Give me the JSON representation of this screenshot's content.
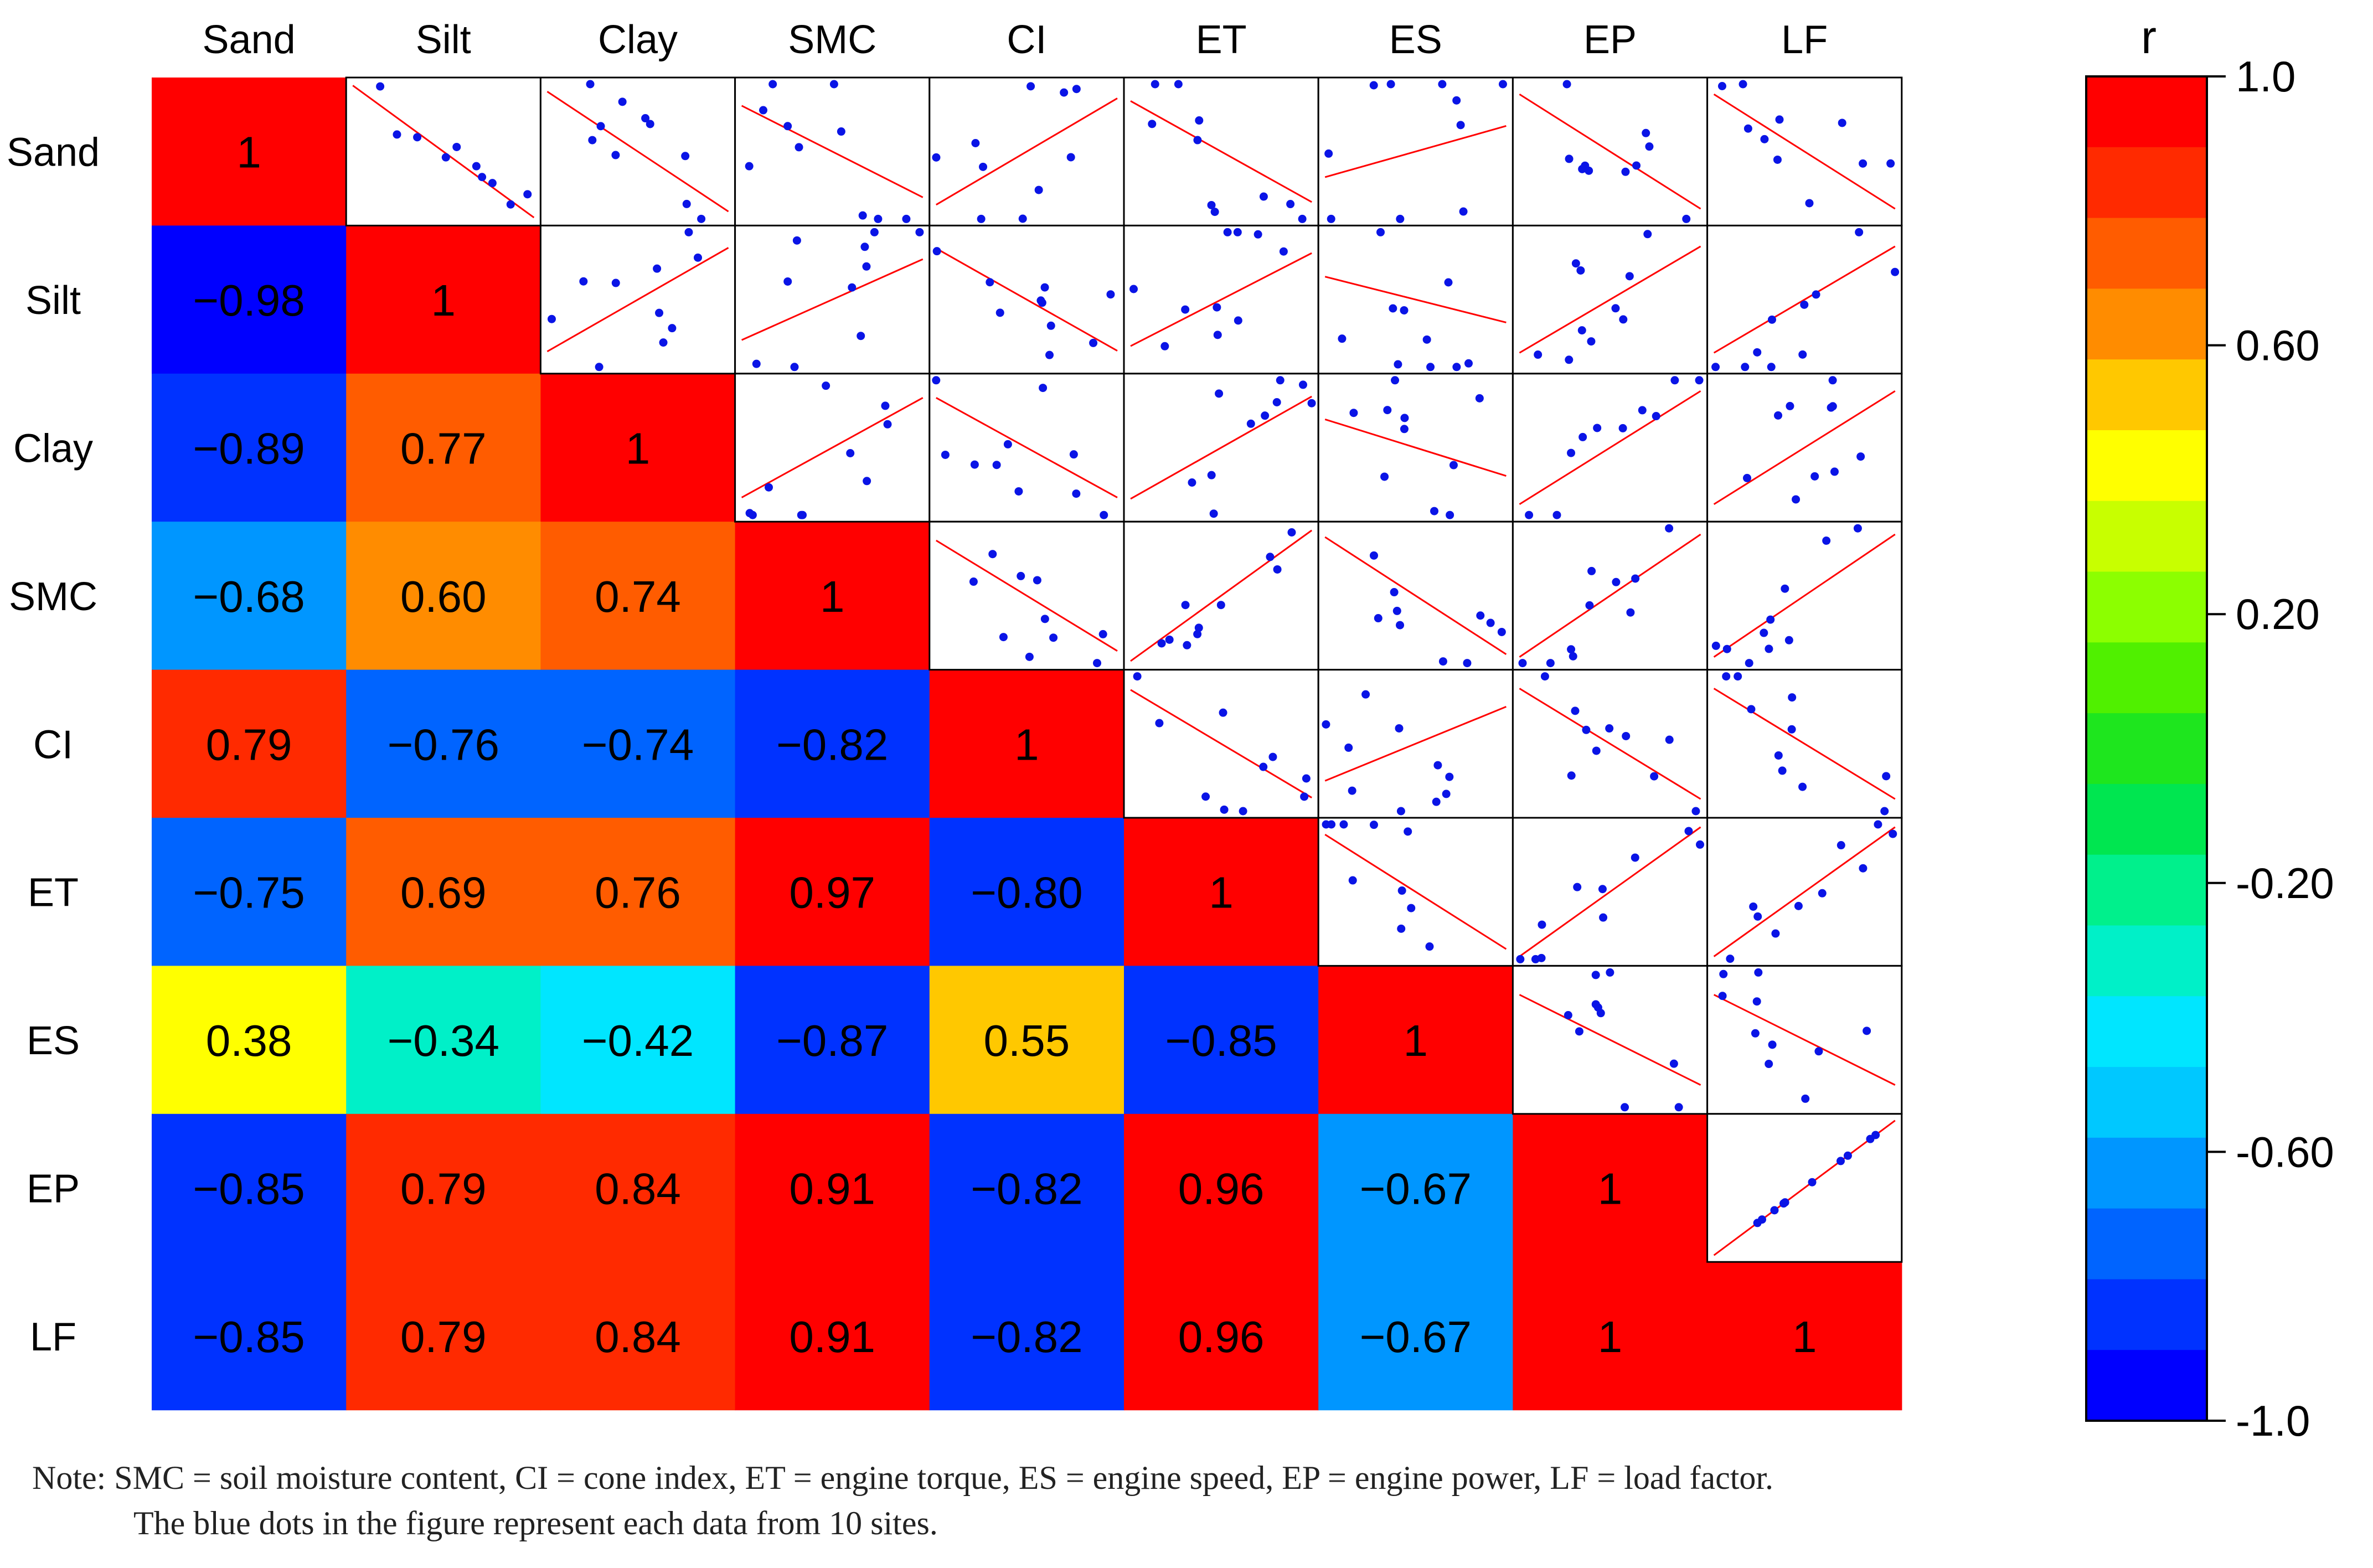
{
  "chart_data": {
    "type": "heatmap",
    "title": "",
    "variables": [
      "Sand",
      "Silt",
      "Clay",
      "SMC",
      "CI",
      "ET",
      "ES",
      "EP",
      "LF"
    ],
    "matrix": [
      [
        1,
        -0.98,
        -0.89,
        -0.68,
        0.79,
        -0.75,
        0.38,
        -0.85,
        -0.85
      ],
      [
        -0.98,
        1,
        0.77,
        0.6,
        -0.76,
        0.69,
        -0.34,
        0.79,
        0.79
      ],
      [
        -0.89,
        0.77,
        1,
        0.74,
        -0.74,
        0.76,
        -0.42,
        0.84,
        0.84
      ],
      [
        -0.68,
        0.6,
        0.74,
        1,
        -0.82,
        0.97,
        -0.87,
        0.91,
        0.91
      ],
      [
        0.79,
        -0.76,
        -0.74,
        -0.82,
        1,
        -0.8,
        0.55,
        -0.82,
        -0.82
      ],
      [
        -0.75,
        0.69,
        0.76,
        0.97,
        -0.8,
        1,
        -0.85,
        0.96,
        0.96
      ],
      [
        0.38,
        -0.34,
        -0.42,
        -0.87,
        0.55,
        -0.85,
        1,
        -0.67,
        -0.67
      ],
      [
        -0.85,
        0.79,
        0.84,
        0.91,
        -0.82,
        0.96,
        -0.67,
        1,
        1
      ],
      [
        -0.85,
        0.79,
        0.84,
        0.91,
        -0.82,
        0.96,
        -0.67,
        1,
        1
      ]
    ],
    "cell_labels": [
      [
        "1"
      ],
      [
        "−0.98",
        "1"
      ],
      [
        "−0.89",
        "0.77",
        "1"
      ],
      [
        "−0.68",
        "0.60",
        "0.74",
        "1"
      ],
      [
        "0.79",
        "−0.76",
        "−0.74",
        "−0.82",
        "1"
      ],
      [
        "−0.75",
        "0.69",
        "0.76",
        "0.97",
        "−0.80",
        "1"
      ],
      [
        "0.38",
        "−0.34",
        "−0.42",
        "−0.87",
        "0.55",
        "−0.85",
        "1"
      ],
      [
        "−0.85",
        "0.79",
        "0.84",
        "0.91",
        "−0.82",
        "0.96",
        "−0.67",
        "1"
      ],
      [
        "−0.85",
        "0.79",
        "0.84",
        "0.91",
        "−0.82",
        "0.96",
        "−0.67",
        "1",
        "1"
      ]
    ],
    "upper_triangle": "scatter plots of the 10 sites with red fitted trend lines",
    "scatter_point_color": "#0a14e6",
    "trend_line_color": "#ff0000",
    "sites": 10,
    "colorbar": {
      "label": "r",
      "range": [
        -1.0,
        1.0
      ],
      "tick_labels": [
        "1.0",
        "0.60",
        "0.20",
        "-0.20",
        "-0.60",
        "-1.0"
      ],
      "tick_values": [
        1.0,
        0.6,
        0.2,
        -0.2,
        -0.6,
        -1.0
      ],
      "colors_top_to_bottom": [
        "#ff0000",
        "#ff2a00",
        "#ff5c00",
        "#ff8c00",
        "#ffc800",
        "#ffff00",
        "#c8ff00",
        "#8cff00",
        "#50f000",
        "#1ee61e",
        "#00e650",
        "#00f08c",
        "#00f0c8",
        "#00e6ff",
        "#00c8ff",
        "#0096ff",
        "#0064ff",
        "#0032ff",
        "#0000ff"
      ]
    }
  },
  "note": {
    "line1": "Note: SMC = soil moisture content, CI = cone index, ET = engine torque, ES = engine speed, EP = engine power, LF = load factor.",
    "line2": "The blue dots in the figure represent each data from 10 sites."
  }
}
